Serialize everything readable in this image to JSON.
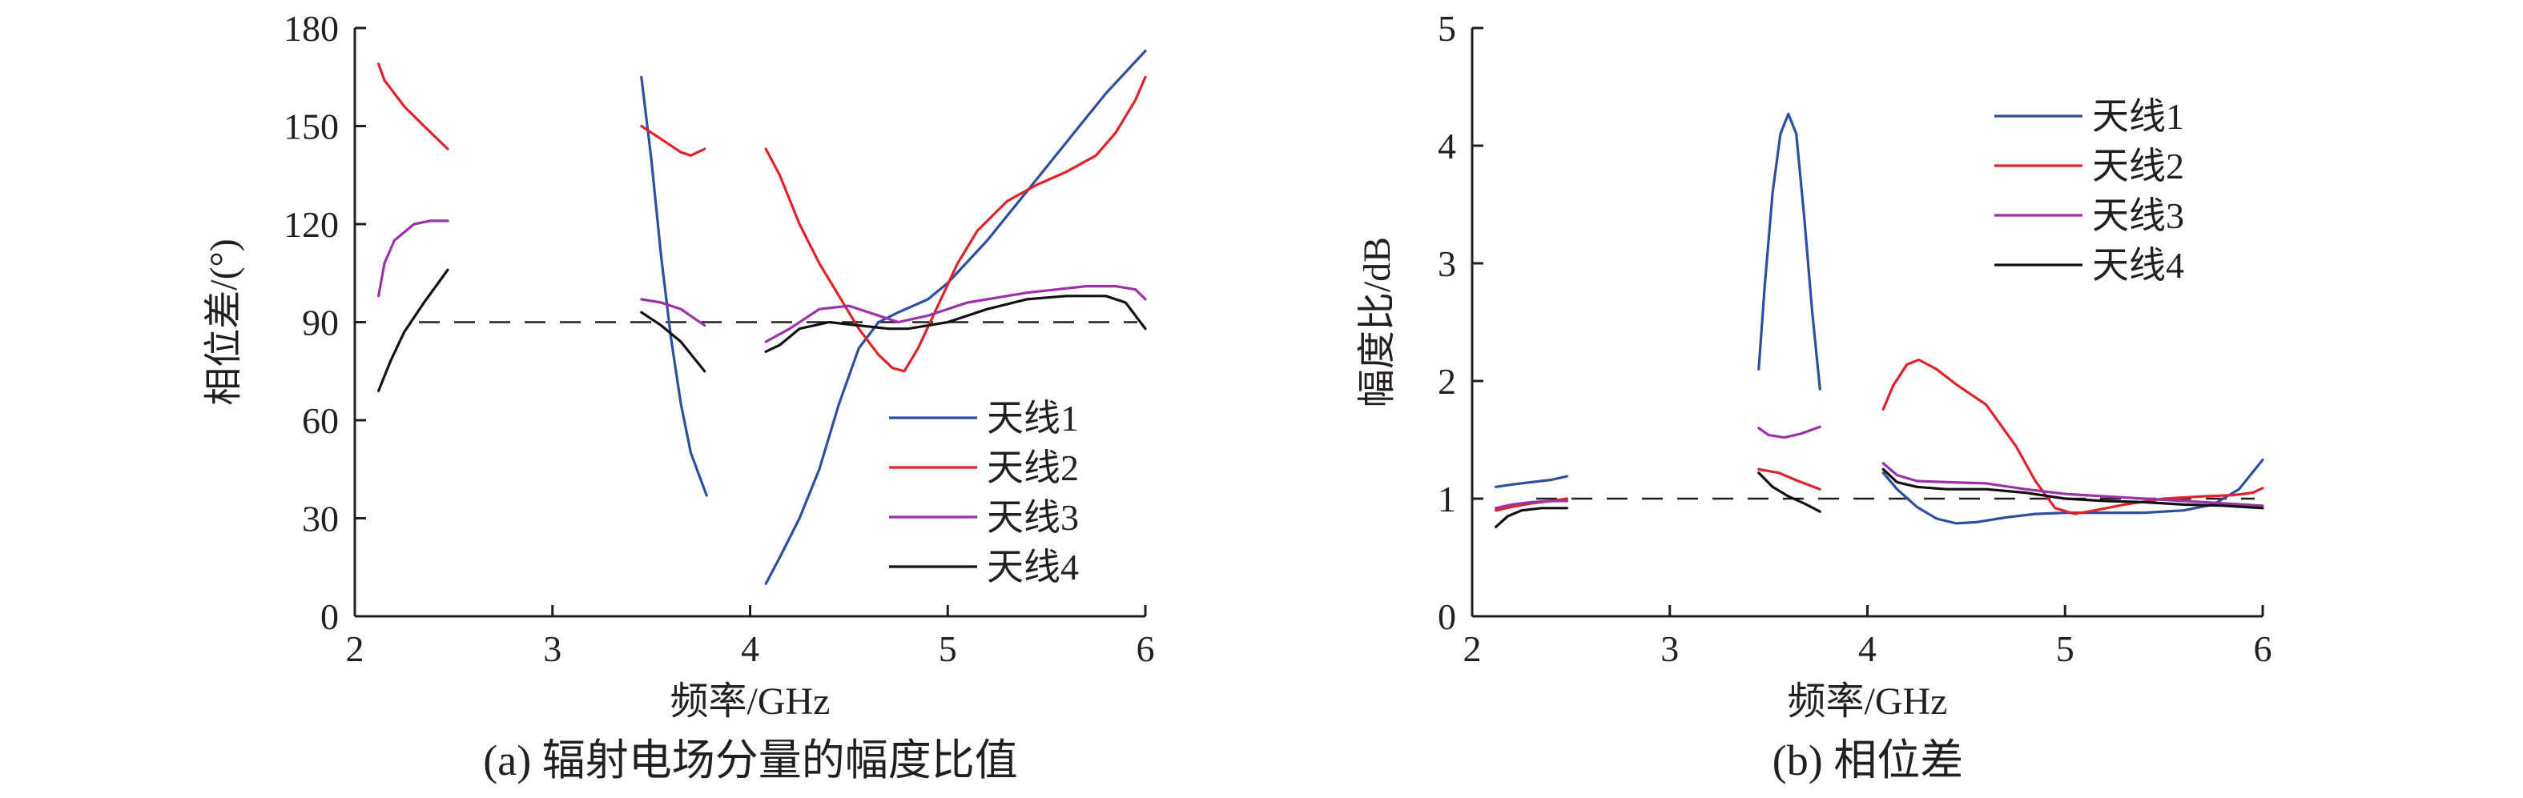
{
  "colors": {
    "axis": "#231f20",
    "antenna1": "#2e4f9f",
    "antenna2": "#e0232b",
    "antenna3": "#9b32a8",
    "antenna4": "#111111"
  },
  "chart_data": [
    {
      "type": "line",
      "caption": "(a) 辐射电场分量的幅度比值",
      "xlabel": "频率/GHz",
      "ylabel": "相位差/(°)",
      "xlim": [
        2,
        6
      ],
      "ylim": [
        0,
        180
      ],
      "xticks": [
        2,
        3,
        4,
        5,
        6
      ],
      "yticks": [
        0,
        30,
        60,
        90,
        120,
        150,
        180
      ],
      "grid": false,
      "legend_position": "lower-right",
      "reference_line": {
        "y": 90,
        "style": "dashed"
      },
      "series": [
        {
          "name": "天线1",
          "color": "#2e4f9f",
          "segments": [
            [
              [
                3.45,
                165
              ],
              [
                3.5,
                140
              ],
              [
                3.55,
                110
              ],
              [
                3.6,
                85
              ],
              [
                3.65,
                65
              ],
              [
                3.7,
                50
              ],
              [
                3.78,
                37
              ]
            ],
            [
              [
                4.08,
                10
              ],
              [
                4.15,
                18
              ],
              [
                4.25,
                30
              ],
              [
                4.35,
                45
              ],
              [
                4.45,
                65
              ],
              [
                4.55,
                82
              ],
              [
                4.65,
                90
              ],
              [
                4.75,
                93
              ],
              [
                4.9,
                97
              ],
              [
                5.0,
                102
              ],
              [
                5.2,
                115
              ],
              [
                5.4,
                130
              ],
              [
                5.6,
                145
              ],
              [
                5.8,
                160
              ],
              [
                6.0,
                173
              ]
            ]
          ]
        },
        {
          "name": "天线2",
          "color": "#e0232b",
          "segments": [
            [
              [
                2.12,
                169
              ],
              [
                2.15,
                164
              ],
              [
                2.25,
                156
              ],
              [
                2.35,
                150
              ],
              [
                2.47,
                143
              ]
            ],
            [
              [
                3.45,
                150
              ],
              [
                3.55,
                146
              ],
              [
                3.65,
                142
              ],
              [
                3.7,
                141
              ],
              [
                3.77,
                143
              ]
            ],
            [
              [
                4.08,
                143
              ],
              [
                4.15,
                135
              ],
              [
                4.25,
                120
              ],
              [
                4.35,
                108
              ],
              [
                4.45,
                98
              ],
              [
                4.55,
                88
              ],
              [
                4.65,
                80
              ],
              [
                4.72,
                76
              ],
              [
                4.78,
                75
              ],
              [
                4.85,
                82
              ],
              [
                4.95,
                95
              ],
              [
                5.05,
                108
              ],
              [
                5.15,
                118
              ],
              [
                5.3,
                127
              ],
              [
                5.45,
                132
              ],
              [
                5.6,
                136
              ],
              [
                5.75,
                141
              ],
              [
                5.85,
                148
              ],
              [
                5.95,
                158
              ],
              [
                6.0,
                165
              ]
            ]
          ]
        },
        {
          "name": "天线3",
          "color": "#9b32a8",
          "segments": [
            [
              [
                2.12,
                98
              ],
              [
                2.15,
                108
              ],
              [
                2.2,
                115
              ],
              [
                2.3,
                120
              ],
              [
                2.38,
                121
              ],
              [
                2.47,
                121
              ]
            ],
            [
              [
                3.45,
                97
              ],
              [
                3.55,
                96
              ],
              [
                3.65,
                94
              ],
              [
                3.77,
                89
              ]
            ],
            [
              [
                4.08,
                84
              ],
              [
                4.2,
                88
              ],
              [
                4.35,
                94
              ],
              [
                4.5,
                95
              ],
              [
                4.65,
                92
              ],
              [
                4.75,
                90
              ],
              [
                4.9,
                92
              ],
              [
                5.1,
                96
              ],
              [
                5.4,
                99
              ],
              [
                5.7,
                101
              ],
              [
                5.85,
                101
              ],
              [
                5.95,
                100
              ],
              [
                6.0,
                97
              ]
            ]
          ]
        },
        {
          "name": "天线4",
          "color": "#111111",
          "segments": [
            [
              [
                2.12,
                69
              ],
              [
                2.18,
                78
              ],
              [
                2.25,
                87
              ],
              [
                2.35,
                96
              ],
              [
                2.47,
                106
              ]
            ],
            [
              [
                3.45,
                93
              ],
              [
                3.55,
                89
              ],
              [
                3.65,
                84
              ],
              [
                3.77,
                75
              ]
            ],
            [
              [
                4.08,
                81
              ],
              [
                4.15,
                83
              ],
              [
                4.25,
                88
              ],
              [
                4.4,
                90
              ],
              [
                4.55,
                89
              ],
              [
                4.7,
                88
              ],
              [
                4.8,
                88
              ],
              [
                5.0,
                90
              ],
              [
                5.2,
                94
              ],
              [
                5.4,
                97
              ],
              [
                5.6,
                98
              ],
              [
                5.8,
                98
              ],
              [
                5.9,
                96
              ],
              [
                6.0,
                88
              ]
            ]
          ]
        }
      ]
    },
    {
      "type": "line",
      "caption": "(b) 相位差",
      "xlabel": "频率/GHz",
      "ylabel": "幅度比/dB",
      "xlim": [
        2,
        6
      ],
      "ylim": [
        0,
        5
      ],
      "xticks": [
        2,
        3,
        4,
        5,
        6
      ],
      "yticks": [
        0,
        1,
        2,
        3,
        4,
        5
      ],
      "grid": false,
      "legend_position": "top-right",
      "reference_line": {
        "y": 1,
        "style": "dashed"
      },
      "series": [
        {
          "name": "天线1",
          "color": "#2e4f9f",
          "segments": [
            [
              [
                2.12,
                1.1
              ],
              [
                2.2,
                1.12
              ],
              [
                2.3,
                1.14
              ],
              [
                2.4,
                1.16
              ],
              [
                2.48,
                1.19
              ]
            ],
            [
              [
                3.45,
                2.1
              ],
              [
                3.48,
                2.8
              ],
              [
                3.52,
                3.6
              ],
              [
                3.56,
                4.1
              ],
              [
                3.6,
                4.27
              ],
              [
                3.64,
                4.1
              ],
              [
                3.68,
                3.4
              ],
              [
                3.72,
                2.6
              ],
              [
                3.76,
                1.93
              ]
            ],
            [
              [
                4.08,
                1.22
              ],
              [
                4.15,
                1.08
              ],
              [
                4.25,
                0.93
              ],
              [
                4.35,
                0.83
              ],
              [
                4.45,
                0.79
              ],
              [
                4.55,
                0.8
              ],
              [
                4.7,
                0.84
              ],
              [
                4.85,
                0.87
              ],
              [
                5.0,
                0.88
              ],
              [
                5.2,
                0.88
              ],
              [
                5.4,
                0.88
              ],
              [
                5.6,
                0.9
              ],
              [
                5.75,
                0.95
              ],
              [
                5.88,
                1.08
              ],
              [
                6.0,
                1.33
              ]
            ]
          ]
        },
        {
          "name": "天线2",
          "color": "#e0232b",
          "segments": [
            [
              [
                2.12,
                0.9
              ],
              [
                2.2,
                0.93
              ],
              [
                2.3,
                0.96
              ],
              [
                2.4,
                0.98
              ],
              [
                2.48,
                1.0
              ]
            ],
            [
              [
                3.45,
                1.25
              ],
              [
                3.55,
                1.22
              ],
              [
                3.65,
                1.15
              ],
              [
                3.76,
                1.08
              ]
            ],
            [
              [
                4.08,
                1.76
              ],
              [
                4.13,
                1.96
              ],
              [
                4.2,
                2.14
              ],
              [
                4.26,
                2.18
              ],
              [
                4.35,
                2.1
              ],
              [
                4.45,
                1.97
              ],
              [
                4.6,
                1.8
              ],
              [
                4.75,
                1.45
              ],
              [
                4.85,
                1.15
              ],
              [
                4.95,
                0.92
              ],
              [
                5.05,
                0.87
              ],
              [
                5.15,
                0.9
              ],
              [
                5.3,
                0.95
              ],
              [
                5.5,
                1.0
              ],
              [
                5.7,
                1.02
              ],
              [
                5.85,
                1.03
              ],
              [
                5.95,
                1.05
              ],
              [
                6.0,
                1.09
              ]
            ]
          ]
        },
        {
          "name": "天线3",
          "color": "#9b32a8",
          "segments": [
            [
              [
                2.12,
                0.92
              ],
              [
                2.2,
                0.95
              ],
              [
                2.3,
                0.97
              ],
              [
                2.4,
                0.98
              ],
              [
                2.48,
                0.98
              ]
            ],
            [
              [
                3.45,
                1.6
              ],
              [
                3.5,
                1.54
              ],
              [
                3.58,
                1.52
              ],
              [
                3.66,
                1.55
              ],
              [
                3.76,
                1.61
              ]
            ],
            [
              [
                4.08,
                1.3
              ],
              [
                4.15,
                1.2
              ],
              [
                4.25,
                1.15
              ],
              [
                4.4,
                1.14
              ],
              [
                4.6,
                1.13
              ],
              [
                4.8,
                1.08
              ],
              [
                5.0,
                1.04
              ],
              [
                5.2,
                1.02
              ],
              [
                5.4,
                1.0
              ],
              [
                5.6,
                0.98
              ],
              [
                5.8,
                0.96
              ],
              [
                6.0,
                0.94
              ]
            ]
          ]
        },
        {
          "name": "天线4",
          "color": "#111111",
          "segments": [
            [
              [
                2.12,
                0.76
              ],
              [
                2.18,
                0.85
              ],
              [
                2.25,
                0.9
              ],
              [
                2.35,
                0.92
              ],
              [
                2.48,
                0.92
              ]
            ],
            [
              [
                3.45,
                1.22
              ],
              [
                3.52,
                1.1
              ],
              [
                3.6,
                1.02
              ],
              [
                3.68,
                0.96
              ],
              [
                3.76,
                0.89
              ]
            ],
            [
              [
                4.08,
                1.25
              ],
              [
                4.15,
                1.14
              ],
              [
                4.25,
                1.1
              ],
              [
                4.4,
                1.08
              ],
              [
                4.6,
                1.08
              ],
              [
                4.8,
                1.05
              ],
              [
                5.0,
                1.0
              ],
              [
                5.2,
                0.98
              ],
              [
                5.4,
                0.97
              ],
              [
                5.6,
                0.95
              ],
              [
                5.8,
                0.94
              ],
              [
                6.0,
                0.92
              ]
            ]
          ]
        }
      ]
    }
  ]
}
